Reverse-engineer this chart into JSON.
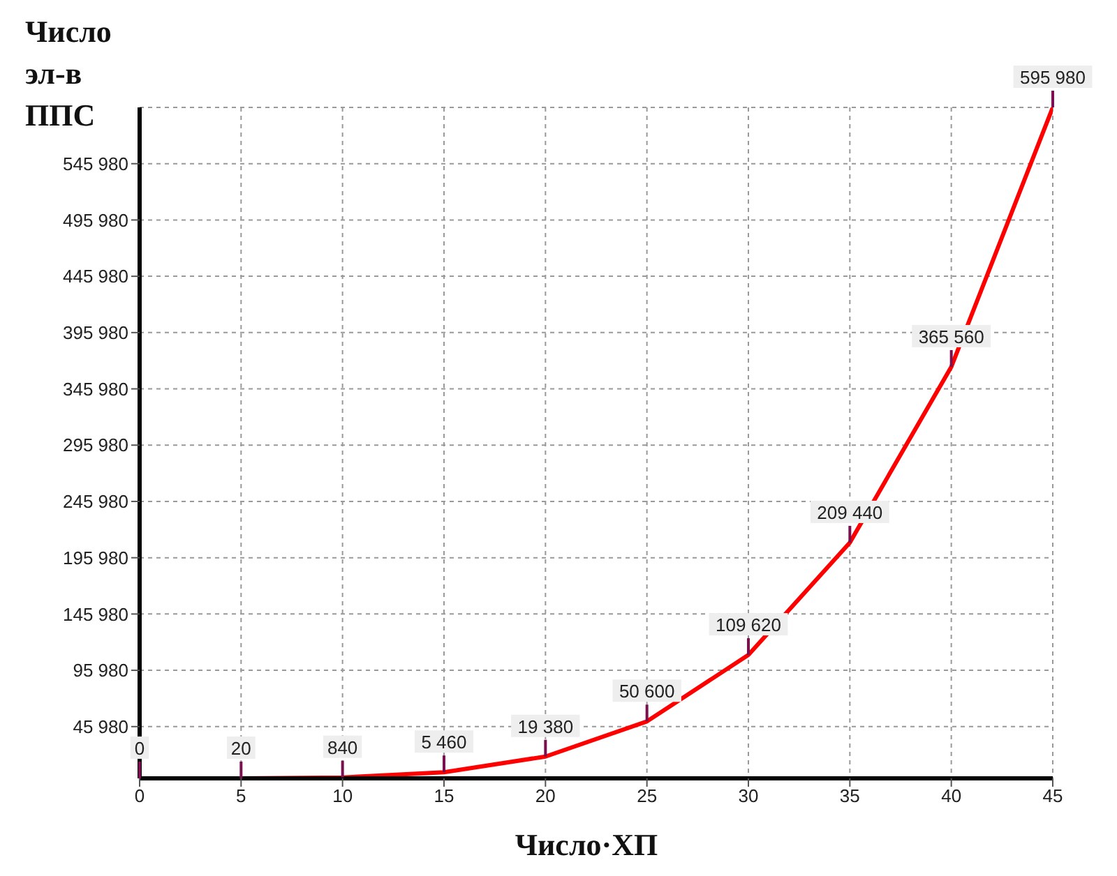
{
  "chart_data": {
    "type": "line",
    "xlabel": "Число·ХП",
    "ylabel": "Число эл-в ППС",
    "x": [
      0,
      5,
      10,
      15,
      20,
      25,
      30,
      35,
      40,
      45
    ],
    "series": [
      {
        "color": "#ff0000",
        "values": [
          0,
          20,
          840,
          5460,
          19380,
          50600,
          109620,
          209440,
          365560,
          595980
        ]
      }
    ],
    "xlim": [
      0,
      45
    ],
    "xticks": [
      0,
      5,
      10,
      15,
      20,
      25,
      30,
      35,
      40,
      45
    ],
    "ylim": [
      0,
      595980
    ],
    "yticks": [
      45980,
      95980,
      145980,
      195980,
      245980,
      295980,
      345980,
      395980,
      445980,
      495980,
      545980
    ],
    "grid": true,
    "data_labels": true,
    "marker": "none",
    "line_style": "solid"
  }
}
